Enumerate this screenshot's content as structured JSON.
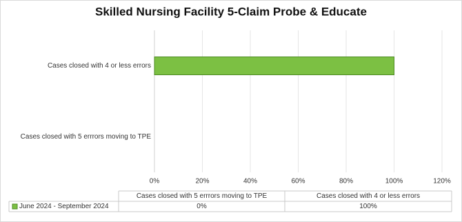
{
  "chart_data": {
    "type": "barh",
    "title": "Skilled Nursing Facility 5-Claim Probe & Educate",
    "categories": [
      "Cases closed with 5 errrors moving to TPE",
      "Cases closed with 4 or less errors"
    ],
    "series": [
      {
        "name": "June 2024 - September 2024",
        "color": "#7cc043",
        "values": [
          0,
          100
        ],
        "value_labels": [
          "0%",
          "100%"
        ]
      }
    ],
    "xlim": [
      0,
      120
    ],
    "xticks": [
      {
        "value": 0,
        "label": "0%"
      },
      {
        "value": 20,
        "label": "20%"
      },
      {
        "value": 40,
        "label": "40%"
      },
      {
        "value": 60,
        "label": "60%"
      },
      {
        "value": 80,
        "label": "80%"
      },
      {
        "value": 100,
        "label": "100%"
      },
      {
        "value": 120,
        "label": "120%"
      }
    ],
    "grid": true
  }
}
